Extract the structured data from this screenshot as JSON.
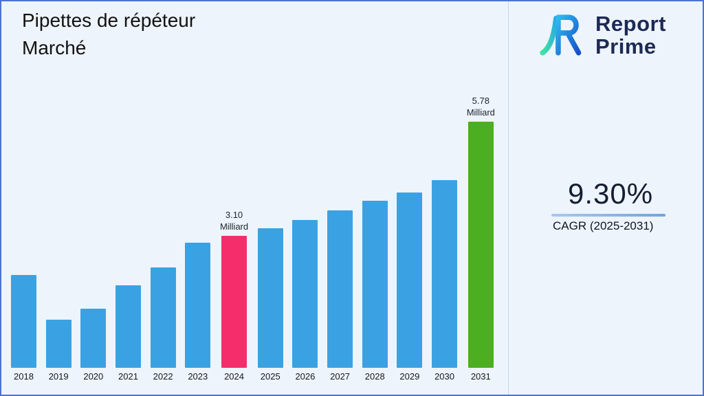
{
  "title": "Pipettes de répéteur Marché",
  "logo": {
    "line1": "Report",
    "line2": "Prime"
  },
  "cagr": {
    "value": "9.30%",
    "label": "CAGR (2025-2031)"
  },
  "chart_data": {
    "type": "bar",
    "title": "Pipettes de répéteur Marché",
    "xlabel": "",
    "ylabel": "",
    "unit": "Milliard",
    "categories": [
      "2018",
      "2019",
      "2020",
      "2021",
      "2022",
      "2023",
      "2024",
      "2025",
      "2026",
      "2027",
      "2028",
      "2029",
      "2030",
      "2031"
    ],
    "values": [
      2.18,
      1.13,
      1.39,
      1.94,
      2.35,
      2.94,
      3.1,
      3.28,
      3.47,
      3.69,
      3.92,
      4.12,
      4.41,
      5.78
    ],
    "ylim": [
      0,
      6.2
    ],
    "grid": false,
    "legend": false,
    "colors": {
      "default": "#3aa2e3",
      "2024": "#f62d6b",
      "2031": "#4caf22"
    },
    "annotations": [
      {
        "category": "2024",
        "lines": [
          "3.10",
          "Milliard"
        ]
      },
      {
        "category": "2031",
        "lines": [
          "5.78",
          "Milliard"
        ]
      }
    ]
  }
}
